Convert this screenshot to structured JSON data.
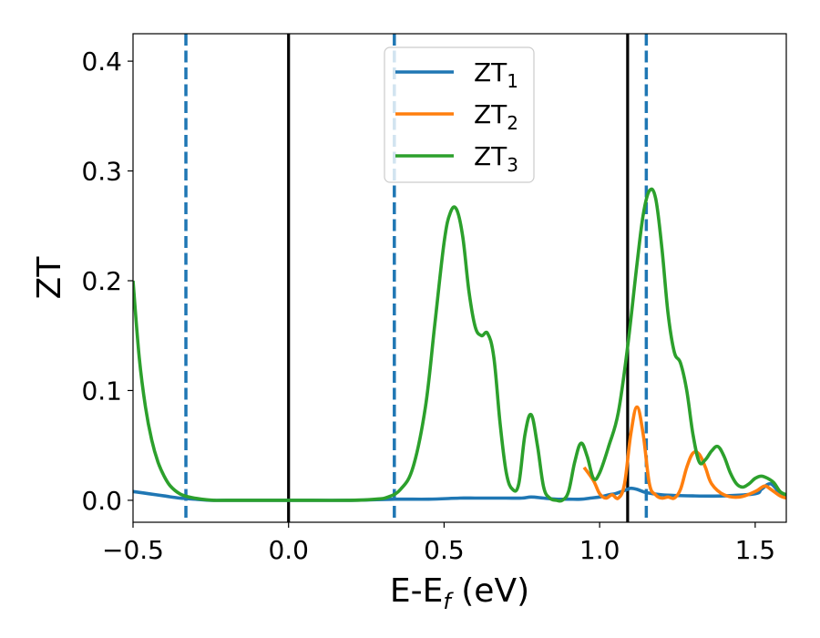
{
  "chart_data": {
    "type": "line",
    "xlabel": "E-E",
    "xlabel_sub": "f",
    "xlabel_unit": " (eV)",
    "ylabel": "ZT",
    "xlim": [
      -0.5,
      1.6
    ],
    "ylim": [
      -0.02,
      0.425
    ],
    "x_ticks": [
      -0.5,
      0.0,
      0.5,
      1.0,
      1.5
    ],
    "x_tick_labels": [
      "−0.5",
      "0.0",
      "0.5",
      "1.0",
      "1.5"
    ],
    "y_ticks": [
      0.0,
      0.1,
      0.2,
      0.3,
      0.4
    ],
    "y_tick_labels": [
      "0.0",
      "0.1",
      "0.2",
      "0.3",
      "0.4"
    ],
    "legend_position": "top-center",
    "grid": false,
    "vertical_lines": [
      {
        "x": -0.33,
        "style": "dashed",
        "color": "#1f77b4"
      },
      {
        "x": 0.0,
        "style": "solid",
        "color": "#000000"
      },
      {
        "x": 0.34,
        "style": "dashed",
        "color": "#1f77b4"
      },
      {
        "x": 1.09,
        "style": "solid",
        "color": "#000000"
      },
      {
        "x": 1.15,
        "style": "dashed",
        "color": "#1f77b4"
      }
    ],
    "series": [
      {
        "name": "ZT",
        "name_sub": "1",
        "color": "#1f77b4",
        "x": [
          -0.5,
          -0.45,
          -0.4,
          -0.35,
          -0.3,
          -0.25,
          -0.2,
          0.0,
          0.2,
          0.34,
          0.45,
          0.55,
          0.6,
          0.65,
          0.7,
          0.75,
          0.78,
          0.82,
          0.86,
          0.9,
          0.94,
          0.97,
          1.0,
          1.03,
          1.05,
          1.07,
          1.09,
          1.1,
          1.12,
          1.15,
          1.2,
          1.3,
          1.4,
          1.5,
          1.52,
          1.55,
          1.58,
          1.6
        ],
        "y": [
          0.008,
          0.006,
          0.004,
          0.002,
          0.001,
          0.0,
          0.0,
          0.0,
          0.0,
          0.001,
          0.001,
          0.002,
          0.002,
          0.002,
          0.002,
          0.002,
          0.003,
          0.002,
          0.001,
          0.001,
          0.001,
          0.002,
          0.003,
          0.005,
          0.006,
          0.008,
          0.01,
          0.011,
          0.01,
          0.007,
          0.005,
          0.004,
          0.004,
          0.006,
          0.01,
          0.015,
          0.006,
          0.003
        ]
      },
      {
        "name": "ZT",
        "name_sub": "2",
        "color": "#ff7f0e",
        "x": [
          0.95,
          0.98,
          1.0,
          1.02,
          1.04,
          1.06,
          1.08,
          1.1,
          1.12,
          1.14,
          1.16,
          1.18,
          1.2,
          1.22,
          1.24,
          1.26,
          1.28,
          1.3,
          1.32,
          1.34,
          1.36,
          1.4,
          1.45,
          1.5,
          1.53,
          1.55,
          1.58,
          1.6
        ],
        "y": [
          0.03,
          0.018,
          0.006,
          0.002,
          0.005,
          0.002,
          0.015,
          0.06,
          0.085,
          0.06,
          0.015,
          0.005,
          0.002,
          0.003,
          0.002,
          0.01,
          0.03,
          0.043,
          0.042,
          0.03,
          0.015,
          0.005,
          0.003,
          0.008,
          0.013,
          0.01,
          0.004,
          0.002
        ]
      },
      {
        "name": "ZT",
        "name_sub": "3",
        "color": "#2ca02c",
        "x": [
          -0.5,
          -0.48,
          -0.46,
          -0.44,
          -0.42,
          -0.4,
          -0.38,
          -0.35,
          -0.32,
          -0.28,
          -0.24,
          -0.2,
          0.0,
          0.2,
          0.28,
          0.32,
          0.36,
          0.4,
          0.44,
          0.47,
          0.5,
          0.52,
          0.54,
          0.56,
          0.58,
          0.6,
          0.62,
          0.64,
          0.66,
          0.68,
          0.7,
          0.72,
          0.74,
          0.76,
          0.78,
          0.8,
          0.82,
          0.84,
          0.86,
          0.88,
          0.9,
          0.92,
          0.94,
          0.96,
          0.98,
          1.0,
          1.03,
          1.06,
          1.09,
          1.12,
          1.14,
          1.16,
          1.18,
          1.2,
          1.22,
          1.24,
          1.26,
          1.28,
          1.3,
          1.32,
          1.34,
          1.36,
          1.38,
          1.4,
          1.42,
          1.44,
          1.46,
          1.48,
          1.5,
          1.52,
          1.54,
          1.56,
          1.58,
          1.6
        ],
        "y": [
          0.2,
          0.13,
          0.085,
          0.055,
          0.035,
          0.022,
          0.013,
          0.006,
          0.003,
          0.001,
          0.0,
          0.0,
          0.0,
          0.0,
          0.001,
          0.003,
          0.01,
          0.03,
          0.085,
          0.16,
          0.235,
          0.262,
          0.265,
          0.24,
          0.19,
          0.158,
          0.15,
          0.152,
          0.13,
          0.07,
          0.025,
          0.01,
          0.015,
          0.06,
          0.078,
          0.05,
          0.012,
          0.002,
          0.0,
          0.0,
          0.008,
          0.035,
          0.052,
          0.04,
          0.02,
          0.025,
          0.05,
          0.08,
          0.14,
          0.215,
          0.26,
          0.282,
          0.275,
          0.23,
          0.17,
          0.135,
          0.125,
          0.1,
          0.06,
          0.035,
          0.037,
          0.045,
          0.049,
          0.04,
          0.025,
          0.015,
          0.012,
          0.015,
          0.02,
          0.022,
          0.02,
          0.016,
          0.008,
          0.005
        ]
      }
    ]
  }
}
